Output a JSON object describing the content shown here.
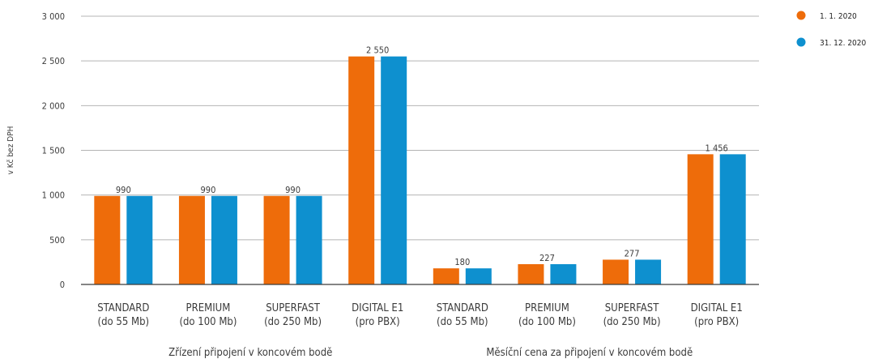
{
  "chart_data": {
    "type": "bar",
    "ylabel": "v Kč bez DPH",
    "ylim": [
      0,
      3000
    ],
    "yticks": [
      "0",
      "500",
      "1 000",
      "1 500",
      "2 000",
      "2 500",
      "3 000"
    ],
    "ytick_values": [
      0,
      500,
      1000,
      1500,
      2000,
      2500,
      3000
    ],
    "grid": true,
    "legend_position": "top-right",
    "categories": [
      {
        "line1": "STANDARD",
        "line2": "(do 55 Mb)"
      },
      {
        "line1": "PREMIUM",
        "line2": "(do 100 Mb)"
      },
      {
        "line1": "SUPERFAST",
        "line2": "(do 250 Mb)"
      },
      {
        "line1": "DIGITAL E1",
        "line2": "(pro PBX)"
      },
      {
        "line1": "STANDARD",
        "line2": "(do 55 Mb)"
      },
      {
        "line1": "PREMIUM",
        "line2": "(do 100 Mb)"
      },
      {
        "line1": "SUPERFAST",
        "line2": "(do 250 Mb)"
      },
      {
        "line1": "DIGITAL E1",
        "line2": "(pro PBX)"
      }
    ],
    "groups": [
      {
        "label": "Zřízení připojení v koncovém bodě",
        "from": 0,
        "to": 3
      },
      {
        "label": "Měsíční cena za připojení v koncovém bodě",
        "from": 4,
        "to": 7
      }
    ],
    "series": [
      {
        "name": "1. 1. 2020",
        "color": "#ee6c0a",
        "values": [
          990,
          990,
          990,
          2550,
          180,
          227,
          277,
          1456
        ]
      },
      {
        "name": "31. 12. 2020",
        "color": "#0e90cf",
        "values": [
          990,
          990,
          990,
          2550,
          180,
          227,
          277,
          1456
        ]
      }
    ],
    "data_labels": [
      "990",
      "990",
      "990",
      "2 550",
      "180",
      "227",
      "277",
      "1 456"
    ]
  }
}
